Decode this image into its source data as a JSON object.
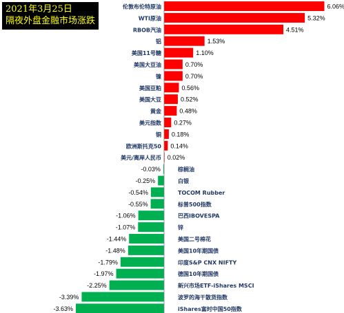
{
  "header": {
    "date": "2021年3月25日",
    "title": "隔夜外盘金融市场涨跌"
  },
  "colors": {
    "positive": "#ff0000",
    "negative": "#00b050",
    "zero_line": "#7f7f7f",
    "label_text": "#203864",
    "value_text": "#000000",
    "title_bg": "#000000",
    "title_text": "#ffff00"
  },
  "chart_data": {
    "type": "bar",
    "orientation": "horizontal",
    "unit": "%",
    "title": "隔夜外盘金融市场涨跌",
    "categories": [
      "伦敦布伦特原油",
      "WTI原油",
      "RBOB汽油",
      "铝",
      "美国11号糖",
      "美国大豆油",
      "镍",
      "美国豆粕",
      "美国大豆",
      "黄金",
      "美元指数",
      "铜",
      "欧洲斯托克50",
      "美元/离岸人民币",
      "棕榈油",
      "白银",
      "TOCOM Rubber",
      "标普500指数",
      "巴西IBOVESPA",
      "锌",
      "美国二号棉花",
      "美国10年期国债",
      "印度S&P CNX NIFTY",
      "德国10年期国债",
      "新兴市场ETF-iShares MSCI",
      "波罗的海干散货指数",
      "iShares富时中国50指数"
    ],
    "values": [
      6.06,
      5.32,
      4.51,
      1.53,
      1.1,
      0.7,
      0.7,
      0.56,
      0.52,
      0.48,
      0.27,
      0.18,
      0.14,
      0.02,
      -0.03,
      -0.25,
      -0.54,
      -0.55,
      -1.06,
      -1.07,
      -1.44,
      -1.48,
      -1.79,
      -1.97,
      -2.25,
      -3.39,
      -3.63
    ],
    "value_labels": [
      "6.06%",
      "5.32%",
      "4.51%",
      "1.53%",
      "1.10%",
      "0.70%",
      "0.70%",
      "0.56%",
      "0.52%",
      "0.48%",
      "0.27%",
      "0.18%",
      "0.14%",
      "0.02%",
      "-0.03%",
      "-0.25%",
      "-0.54%",
      "-0.55%",
      "-1.06%",
      "-1.07%",
      "-1.44%",
      "-1.48%",
      "-1.79%",
      "-1.97%",
      "-2.25%",
      "-3.39%",
      "-3.63%"
    ],
    "xlim": [
      -3.63,
      6.06
    ],
    "legend": "none",
    "grid": false
  }
}
